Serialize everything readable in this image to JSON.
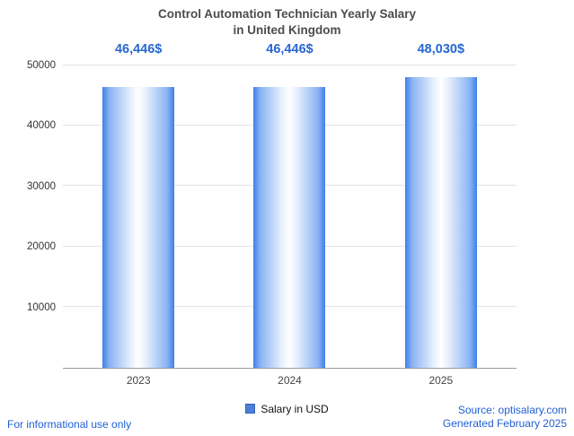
{
  "title": {
    "line1": "Control Automation Technician Yearly Salary",
    "line2": "in United Kingdom"
  },
  "chart_data": {
    "type": "bar",
    "title": "Control Automation Technician Yearly Salary in United Kingdom",
    "categories": [
      "2023",
      "2024",
      "2025"
    ],
    "values": [
      46446,
      46446,
      48030
    ],
    "value_labels": [
      "46,446$",
      "46,446$",
      "48,030$"
    ],
    "series_name": "Salary in USD",
    "ylim": [
      0,
      50000
    ],
    "yticks": [
      10000,
      20000,
      30000,
      40000,
      50000
    ],
    "grid": true,
    "legend_position": "bottom",
    "bar_gradient_edge": "#3f7fe8",
    "bar_gradient_center": "#ffffff",
    "label_color": "#2767d2"
  },
  "legend": {
    "label": "Salary in USD",
    "swatch_color": "#4c7fd6"
  },
  "footer": {
    "left_note": "For informational use only",
    "source": "Source: optisalary.com",
    "generated": "Generated February 2025"
  }
}
